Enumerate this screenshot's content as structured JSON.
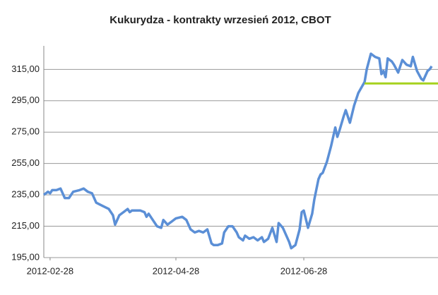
{
  "chart_data": {
    "type": "line",
    "title": "Kukurydza - kontrakty wrzesień 2012, CBOT",
    "xlim": [
      "2012-02-25",
      "2012-08-31"
    ],
    "xticks": [
      "2012-02-28",
      "2012-04-28",
      "2012-06-28"
    ],
    "ylim": [
      195,
      330
    ],
    "yticks": [
      {
        "value": 195,
        "label": "195,00"
      },
      {
        "value": 215,
        "label": "215,00"
      },
      {
        "value": 235,
        "label": "235,00"
      },
      {
        "value": 255,
        "label": "255,00"
      },
      {
        "value": 275,
        "label": "275,00"
      },
      {
        "value": 295,
        "label": "295,00"
      },
      {
        "value": 315,
        "label": "315,00"
      }
    ],
    "grid": true,
    "series": [
      {
        "color": "#5b8fd6",
        "x": [
          "2012-02-25",
          "2012-02-27",
          "2012-02-28",
          "2012-02-29",
          "2012-03-02",
          "2012-03-04",
          "2012-03-06",
          "2012-03-08",
          "2012-03-10",
          "2012-03-13",
          "2012-03-15",
          "2012-03-17",
          "2012-03-19",
          "2012-03-21",
          "2012-03-24",
          "2012-03-27",
          "2012-03-29",
          "2012-03-30",
          "2012-04-01",
          "2012-04-03",
          "2012-04-05",
          "2012-04-06",
          "2012-04-07",
          "2012-04-11",
          "2012-04-13",
          "2012-04-14",
          "2012-04-15",
          "2012-04-17",
          "2012-04-19",
          "2012-04-21",
          "2012-04-22",
          "2012-04-24",
          "2012-04-26",
          "2012-04-28",
          "2012-05-01",
          "2012-05-03",
          "2012-05-05",
          "2012-05-07",
          "2012-05-09",
          "2012-05-11",
          "2012-05-13",
          "2012-05-15",
          "2012-05-16",
          "2012-05-18",
          "2012-05-20",
          "2012-05-21",
          "2012-05-23",
          "2012-05-25",
          "2012-05-27",
          "2012-05-28",
          "2012-05-30",
          "2012-05-31",
          "2012-06-02",
          "2012-06-04",
          "2012-06-06",
          "2012-06-08",
          "2012-06-09",
          "2012-06-11",
          "2012-06-13",
          "2012-06-15",
          "2012-06-16",
          "2012-06-18",
          "2012-06-20",
          "2012-06-21",
          "2012-06-22",
          "2012-06-24",
          "2012-06-26",
          "2012-06-27",
          "2012-06-28",
          "2012-06-30",
          "2012-07-02",
          "2012-07-03",
          "2012-07-05",
          "2012-07-06",
          "2012-07-07",
          "2012-07-09",
          "2012-07-11",
          "2012-07-13",
          "2012-07-14",
          "2012-07-15",
          "2012-07-17",
          "2012-07-18",
          "2012-07-20",
          "2012-07-22",
          "2012-07-24",
          "2012-07-27",
          "2012-07-28",
          "2012-07-30",
          "2012-08-01",
          "2012-08-03",
          "2012-08-04",
          "2012-08-05",
          "2012-08-06",
          "2012-08-07",
          "2012-08-09",
          "2012-08-10",
          "2012-08-12",
          "2012-08-14",
          "2012-08-16",
          "2012-08-18",
          "2012-08-19",
          "2012-08-21",
          "2012-08-23",
          "2012-08-24",
          "2012-08-26",
          "2012-08-27",
          "2012-08-28"
        ],
        "values": [
          235,
          237,
          236,
          238,
          238,
          239,
          233,
          233,
          237,
          238,
          239,
          237,
          236,
          230,
          228,
          226,
          222,
          216,
          222,
          224,
          226,
          224,
          225,
          225,
          224,
          221,
          223,
          219,
          215,
          214,
          219,
          216,
          218,
          220,
          221,
          219,
          213,
          211,
          212,
          211,
          213,
          204,
          203,
          203,
          204,
          211,
          215,
          215,
          211,
          208,
          206,
          209,
          207,
          208,
          206,
          208,
          205,
          207,
          214,
          205,
          217,
          214,
          208,
          205,
          201,
          203,
          213,
          224,
          225,
          214,
          223,
          232,
          245,
          248,
          249,
          256,
          266,
          278,
          272,
          276,
          285,
          289,
          281,
          292,
          300,
          307,
          315,
          325,
          323,
          322,
          312,
          314,
          310,
          322,
          320,
          318,
          313,
          321,
          318,
          317,
          323,
          314,
          309,
          308,
          314,
          315,
          317
        ]
      },
      {
        "color": "#a6d21e",
        "x": [
          "2012-07-27",
          "2012-08-31"
        ],
        "values": [
          306,
          306
        ]
      }
    ]
  }
}
